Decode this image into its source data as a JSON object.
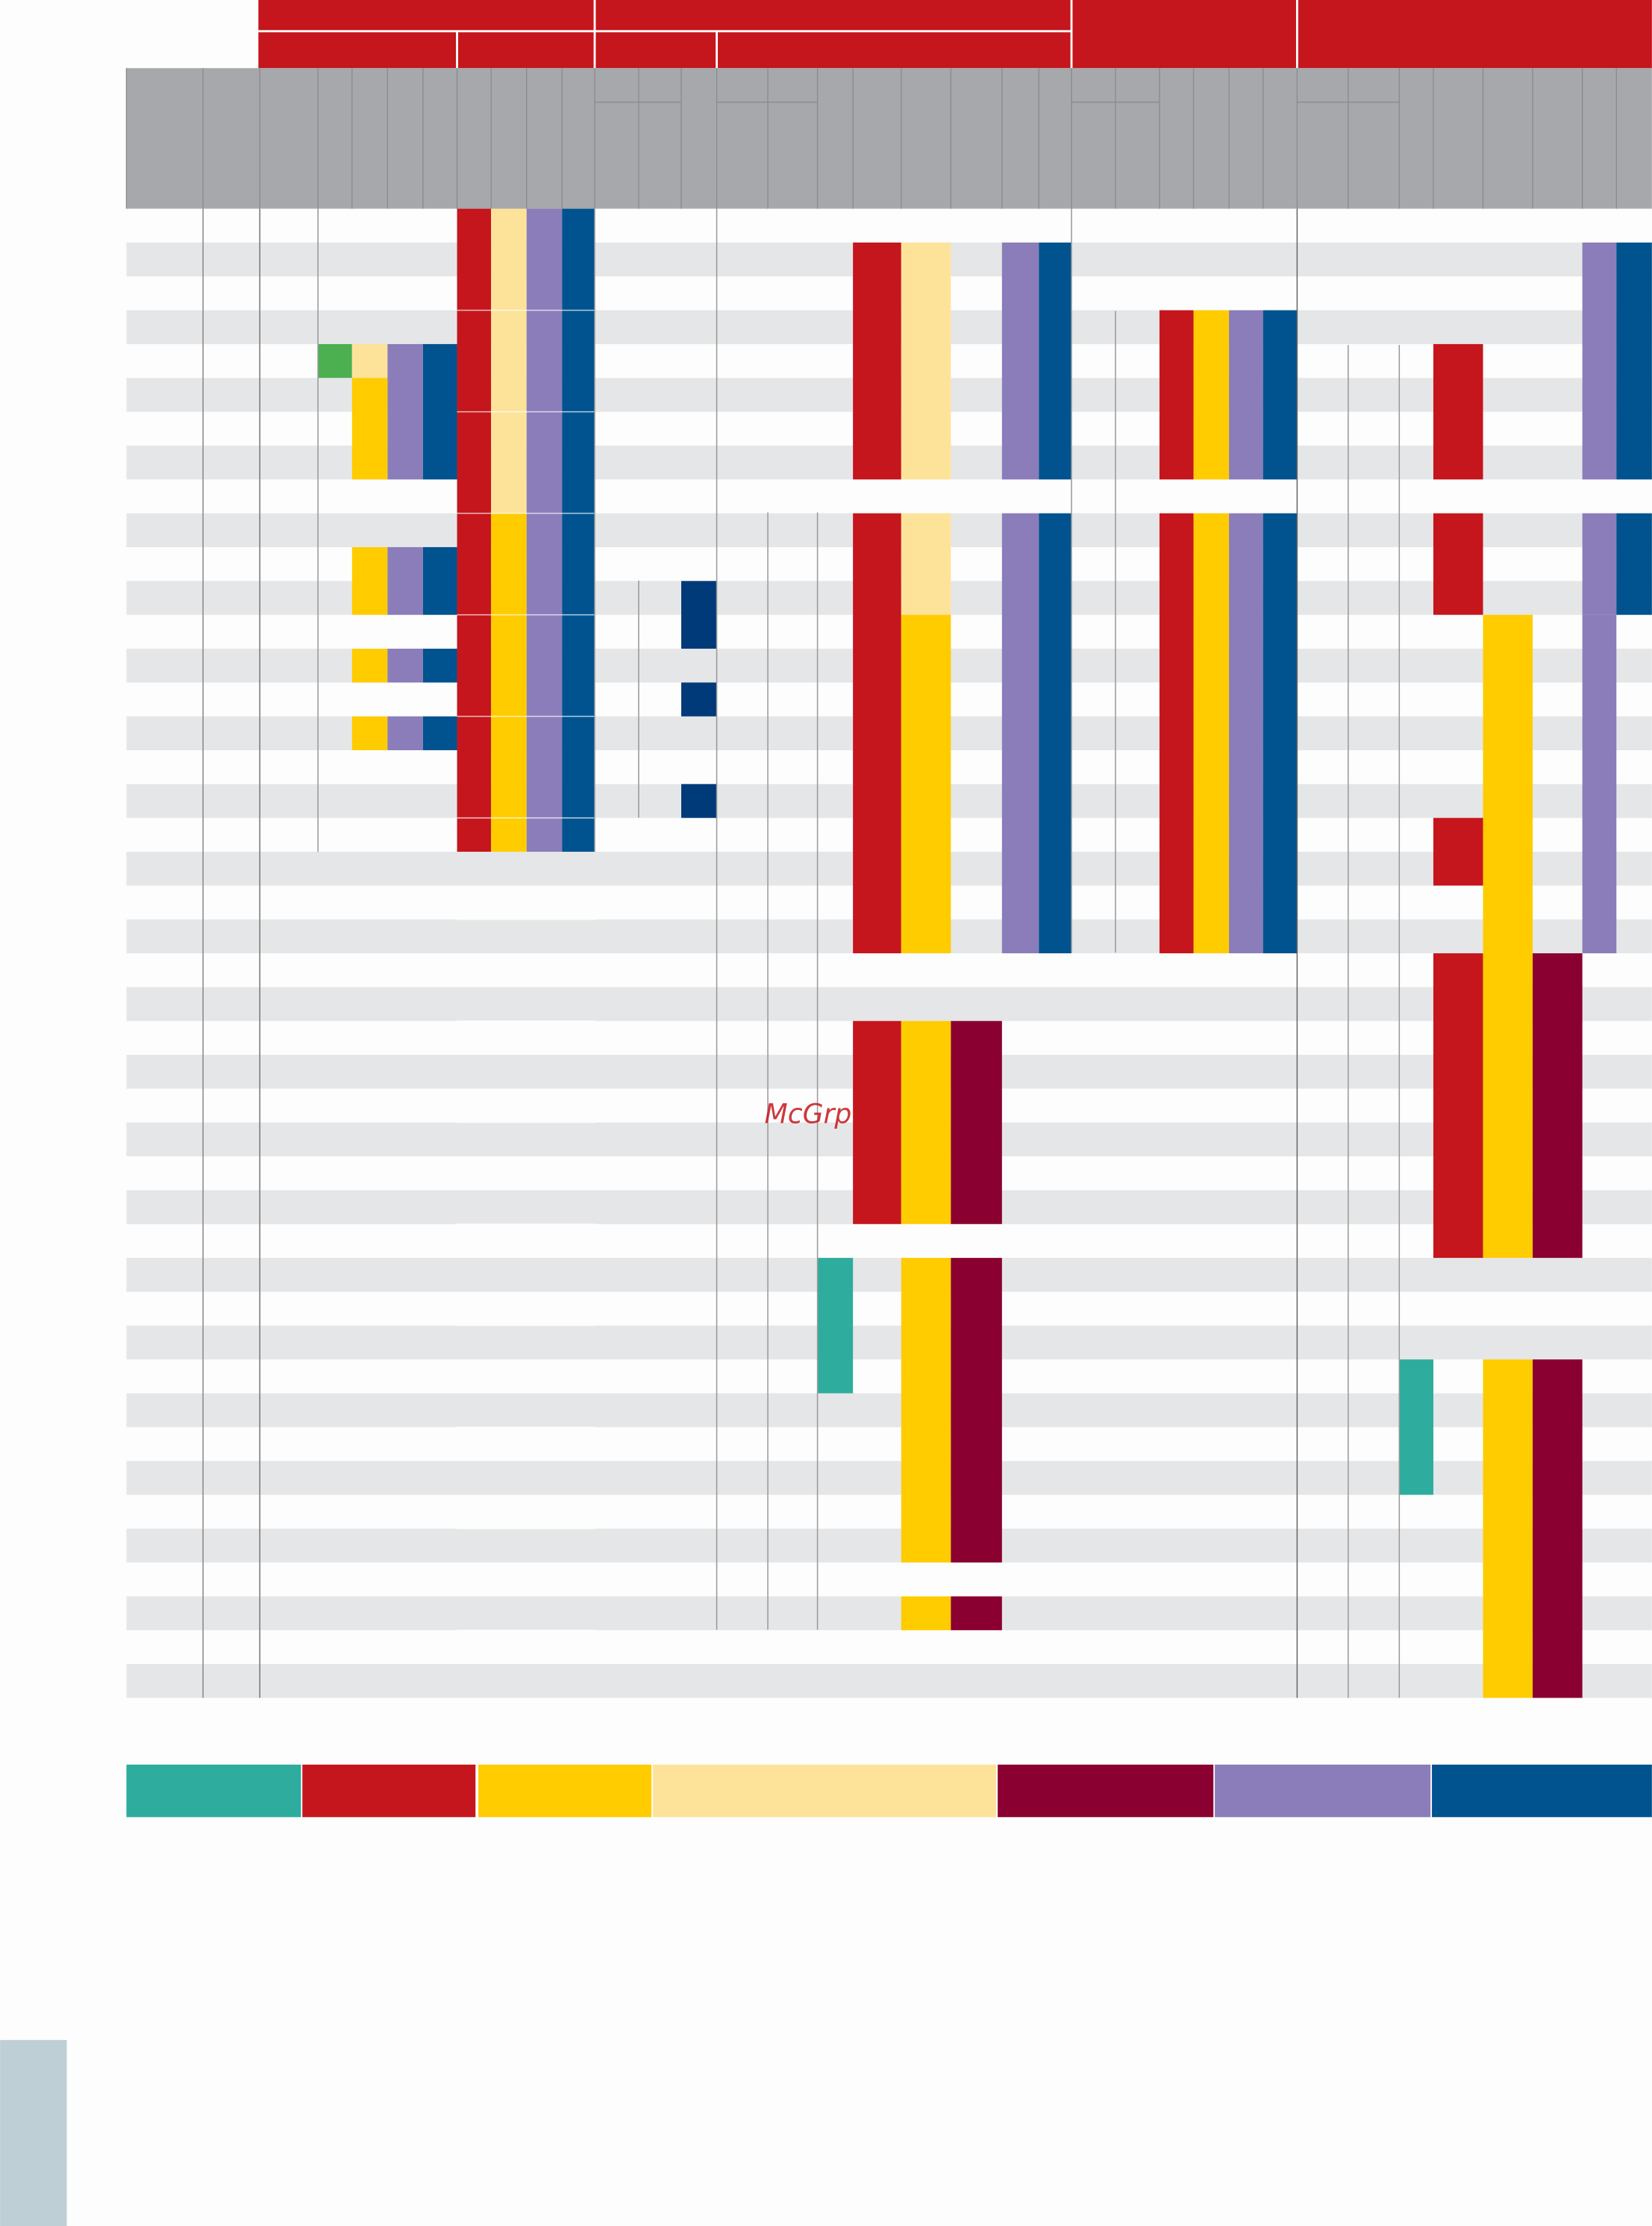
{
  "watermark": "McGrp.Ru"
}
